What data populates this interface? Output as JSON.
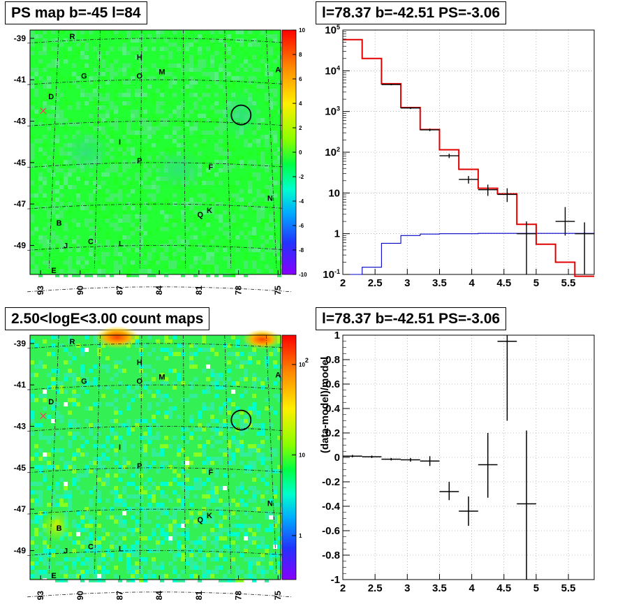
{
  "titles": {
    "map1": "PS map b=-45 l=84",
    "spec1": "l=78.37 b=-42.51 PS=-3.06",
    "map2": "2.50<logE<3.00 count maps",
    "spec2": "l=78.37 b=-42.51 PS=-3.06"
  },
  "colors": {
    "data": "#000000",
    "model": "#e00000",
    "component": "#0000cc",
    "grid": "#888888"
  },
  "chart_data": [
    {
      "type": "heatmap",
      "title": "PS map b=-45 l=84",
      "x_ticks": [
        "93",
        "90",
        "87",
        "84",
        "81",
        "78",
        "75"
      ],
      "y_ticks": [
        "-39",
        "-41",
        "-43",
        "-45",
        "-47",
        "-49"
      ],
      "xlim": [
        93.8,
        74.8
      ],
      "ylim": [
        -50.4,
        -38.6
      ],
      "colorbar": {
        "min": -10,
        "max": 10,
        "ticks": [
          "10",
          "8",
          "6",
          "4",
          "2",
          "0",
          "-2",
          "-4",
          "-6",
          "-8",
          "-10"
        ]
      },
      "markers": [
        {
          "type": "circle",
          "l": 77.8,
          "b": -42.7
        },
        {
          "type": "cross",
          "l": 92.8,
          "b": -42.5
        }
      ],
      "labels": [
        {
          "text": "R",
          "l": 90.6,
          "b": -38.9
        },
        {
          "text": "H",
          "l": 85.5,
          "b": -39.9
        },
        {
          "text": "M",
          "l": 83.8,
          "b": -40.6
        },
        {
          "text": "O",
          "l": 85.5,
          "b": -40.8
        },
        {
          "text": "G",
          "l": 89.7,
          "b": -40.8
        },
        {
          "text": "A",
          "l": 75.0,
          "b": -40.5
        },
        {
          "text": "D",
          "l": 92.2,
          "b": -41.8
        },
        {
          "text": "I",
          "l": 87.0,
          "b": -44.0
        },
        {
          "text": "P",
          "l": 85.5,
          "b": -44.9
        },
        {
          "text": "F",
          "l": 80.1,
          "b": -45.2
        },
        {
          "text": "N",
          "l": 75.6,
          "b": -46.7
        },
        {
          "text": "Q",
          "l": 80.9,
          "b": -47.5
        },
        {
          "text": "K",
          "l": 80.2,
          "b": -47.3
        },
        {
          "text": "B",
          "l": 91.6,
          "b": -47.9
        },
        {
          "text": "C",
          "l": 89.2,
          "b": -48.8
        },
        {
          "text": "L",
          "l": 86.9,
          "b": -48.9
        },
        {
          "text": "J",
          "l": 91.1,
          "b": -49.0
        },
        {
          "text": "E",
          "l": 92.0,
          "b": -50.2
        }
      ]
    },
    {
      "type": "line",
      "title": "l=78.37 b=-42.51 PS=-3.06",
      "x_ticks": [
        "2",
        "2.5",
        "3",
        "3.5",
        "4",
        "4.5",
        "5",
        "5.5"
      ],
      "y_ticks": [
        "10^-1",
        "1",
        "10",
        "10^2",
        "10^3",
        "10^4",
        "10^5"
      ],
      "xlim": [
        2.0,
        5.9
      ],
      "ylim": [
        0.1,
        100000
      ],
      "log_y": true,
      "grid": true,
      "bin_edges": [
        2.0,
        2.3,
        2.6,
        2.9,
        3.2,
        3.5,
        3.8,
        4.1,
        4.4,
        4.7,
        5.0,
        5.3,
        5.6,
        5.9
      ],
      "series": [
        {
          "role": "model",
          "values": [
            58000,
            20000,
            4800,
            1250,
            360,
            115,
            38,
            13,
            9.5,
            1.7,
            0.55,
            0.2,
            0.06
          ]
        },
        {
          "role": "component",
          "values": [
            0.1,
            0.15,
            0.58,
            0.9,
            0.98,
            1.0,
            1.0,
            1.02,
            1.02,
            1.02,
            1.02,
            1.02,
            1.02
          ]
        },
        {
          "role": "data",
          "points": [
            {
              "x": 2.75,
              "y": 4600,
              "ylo": 4400,
              "yhi": 4800
            },
            {
              "x": 3.05,
              "y": 1220,
              "ylo": 1150,
              "yhi": 1290
            },
            {
              "x": 3.35,
              "y": 355,
              "ylo": 330,
              "yhi": 380
            },
            {
              "x": 3.65,
              "y": 82,
              "ylo": 72,
              "yhi": 92
            },
            {
              "x": 3.95,
              "y": 21.5,
              "ylo": 17,
              "yhi": 26
            },
            {
              "x": 4.25,
              "y": 12,
              "ylo": 8.5,
              "yhi": 16
            },
            {
              "x": 4.55,
              "y": 9.2,
              "ylo": 6,
              "yhi": 13
            },
            {
              "x": 4.85,
              "y": 1.0,
              "ylo": 0.1,
              "yhi": 2.0
            },
            {
              "x": 5.45,
              "y": 2.0,
              "ylo": 0.9,
              "yhi": 4.5
            },
            {
              "x": 5.75,
              "y": 1.0,
              "ylo": 0.1,
              "yhi": 1.9
            }
          ]
        }
      ]
    },
    {
      "type": "heatmap",
      "title": "2.50<logE<3.00 count maps",
      "x_ticks": [
        "93",
        "90",
        "87",
        "84",
        "81",
        "78",
        "75"
      ],
      "y_ticks": [
        "-39",
        "-41",
        "-43",
        "-45",
        "-47",
        "-49"
      ],
      "xlim": [
        93.8,
        74.8
      ],
      "ylim": [
        -50.4,
        -38.6
      ],
      "colorbar": {
        "log": true,
        "ticks": [
          "10^2",
          "10",
          "1"
        ]
      },
      "markers": [
        {
          "type": "circle",
          "l": 77.8,
          "b": -42.7
        },
        {
          "type": "cross",
          "l": 92.8,
          "b": -42.5
        }
      ],
      "labels": [
        {
          "text": "R",
          "l": 90.6,
          "b": -38.9
        },
        {
          "text": "H",
          "l": 85.5,
          "b": -39.9
        },
        {
          "text": "M",
          "l": 83.8,
          "b": -40.6
        },
        {
          "text": "O",
          "l": 85.5,
          "b": -40.8
        },
        {
          "text": "G",
          "l": 89.7,
          "b": -40.8
        },
        {
          "text": "A",
          "l": 75.0,
          "b": -40.5
        },
        {
          "text": "D",
          "l": 92.2,
          "b": -41.8
        },
        {
          "text": "I",
          "l": 87.0,
          "b": -44.0
        },
        {
          "text": "P",
          "l": 85.5,
          "b": -44.9
        },
        {
          "text": "F",
          "l": 80.1,
          "b": -45.2
        },
        {
          "text": "N",
          "l": 75.6,
          "b": -46.7
        },
        {
          "text": "Q",
          "l": 80.9,
          "b": -47.5
        },
        {
          "text": "K",
          "l": 80.2,
          "b": -47.3
        },
        {
          "text": "B",
          "l": 91.6,
          "b": -47.9
        },
        {
          "text": "C",
          "l": 89.2,
          "b": -48.8
        },
        {
          "text": "L",
          "l": 86.9,
          "b": -48.9
        },
        {
          "text": "J",
          "l": 91.1,
          "b": -49.0
        },
        {
          "text": "E",
          "l": 92.0,
          "b": -50.2
        }
      ]
    },
    {
      "type": "scatter",
      "title": "l=78.37 b=-42.51 PS=-3.06",
      "ylabel": "(data-model)/model",
      "x_ticks": [
        "2",
        "2.5",
        "3",
        "3.5",
        "4",
        "4.5",
        "5",
        "5.5"
      ],
      "y_ticks": [
        "1",
        "0.8",
        "0.6",
        "0.4",
        "0.2",
        "0",
        "-0.2",
        "-0.4",
        "-0.6",
        "-0.8",
        "-1"
      ],
      "xlim": [
        2.0,
        5.9
      ],
      "ylim": [
        -1,
        1
      ],
      "grid": true,
      "points": [
        {
          "x": 2.15,
          "y": 0.01,
          "ylo": 0.0,
          "yhi": 0.02,
          "xerr": 0.15
        },
        {
          "x": 2.45,
          "y": 0.005,
          "ylo": -0.005,
          "yhi": 0.015,
          "xerr": 0.15
        },
        {
          "x": 2.75,
          "y": -0.015,
          "ylo": -0.025,
          "yhi": -0.005,
          "xerr": 0.15
        },
        {
          "x": 3.05,
          "y": -0.02,
          "ylo": -0.035,
          "yhi": -0.005,
          "xerr": 0.15
        },
        {
          "x": 3.35,
          "y": -0.03,
          "ylo": -0.07,
          "yhi": 0.01,
          "xerr": 0.15
        },
        {
          "x": 3.65,
          "y": -0.28,
          "ylo": -0.35,
          "yhi": -0.2,
          "xerr": 0.15
        },
        {
          "x": 3.95,
          "y": -0.44,
          "ylo": -0.56,
          "yhi": -0.32,
          "xerr": 0.15
        },
        {
          "x": 4.25,
          "y": -0.06,
          "ylo": -0.33,
          "yhi": 0.2,
          "xerr": 0.15
        },
        {
          "x": 4.55,
          "y": 0.95,
          "ylo": 0.3,
          "yhi": 1.0,
          "xerr": 0.15
        },
        {
          "x": 4.85,
          "y": -0.38,
          "ylo": -1.0,
          "yhi": 0.22,
          "xerr": 0.15
        }
      ]
    }
  ]
}
